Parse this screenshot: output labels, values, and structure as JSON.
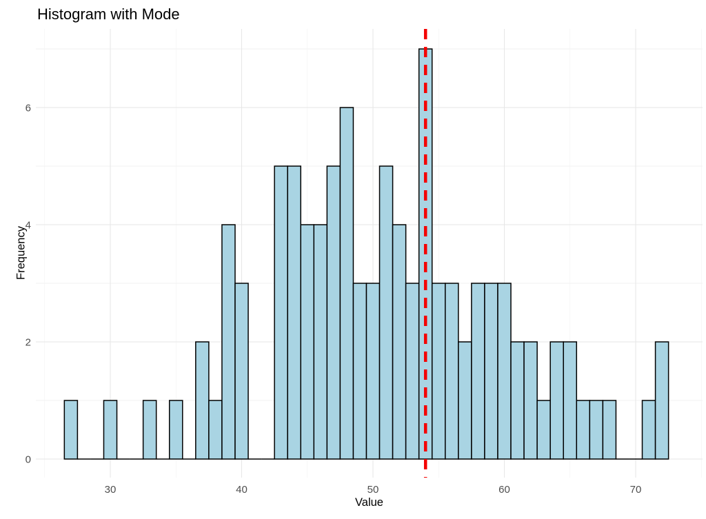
{
  "title": "Histogram with Mode",
  "axis": {
    "x_label": "Value",
    "y_label": "Frequency"
  },
  "colors": {
    "background": "#FFFFFF",
    "bar_fill": "#A9D4E3",
    "bar_stroke": "#000000",
    "mode_line": "#F40000",
    "grid_major": "#E6E6E6",
    "grid_minor": "#F2F2F2",
    "tick_label": "#4D4D4D",
    "text": "#000000"
  },
  "chart_data": {
    "type": "bar",
    "subtype": "histogram",
    "title": "Histogram with Mode",
    "xlabel": "Value",
    "ylabel": "Frequency",
    "bin_width": 1,
    "bin_centers": [
      27,
      28,
      29,
      30,
      31,
      32,
      33,
      34,
      35,
      36,
      37,
      38,
      39,
      40,
      41,
      42,
      43,
      44,
      45,
      46,
      47,
      48,
      49,
      50,
      51,
      52,
      53,
      54,
      55,
      56,
      57,
      58,
      59,
      60,
      61,
      62,
      63,
      64,
      65,
      66,
      67,
      68,
      69,
      70,
      71,
      72
    ],
    "frequencies": [
      1,
      0,
      0,
      1,
      0,
      0,
      1,
      0,
      1,
      0,
      2,
      1,
      4,
      3,
      0,
      0,
      5,
      5,
      4,
      4,
      5,
      6,
      3,
      3,
      5,
      4,
      3,
      7,
      3,
      3,
      2,
      3,
      3,
      3,
      2,
      2,
      1,
      2,
      2,
      1,
      1,
      1,
      0,
      0,
      1,
      2
    ],
    "n_total": 100,
    "mode_value": 54,
    "mode_frequency": 7,
    "mode_line_style": "dashed",
    "x_tick_labels": [
      30,
      40,
      50,
      60,
      70
    ],
    "x_gridlines_minor": [
      25,
      35,
      45,
      55,
      65,
      75
    ],
    "y_tick_labels": [
      0,
      2,
      4,
      6
    ],
    "y_gridlines_minor": [
      1,
      3,
      5,
      7
    ],
    "xlim": [
      24.3,
      75.1
    ],
    "ylim": [
      0,
      7.35
    ],
    "grid": true,
    "legend": false
  }
}
